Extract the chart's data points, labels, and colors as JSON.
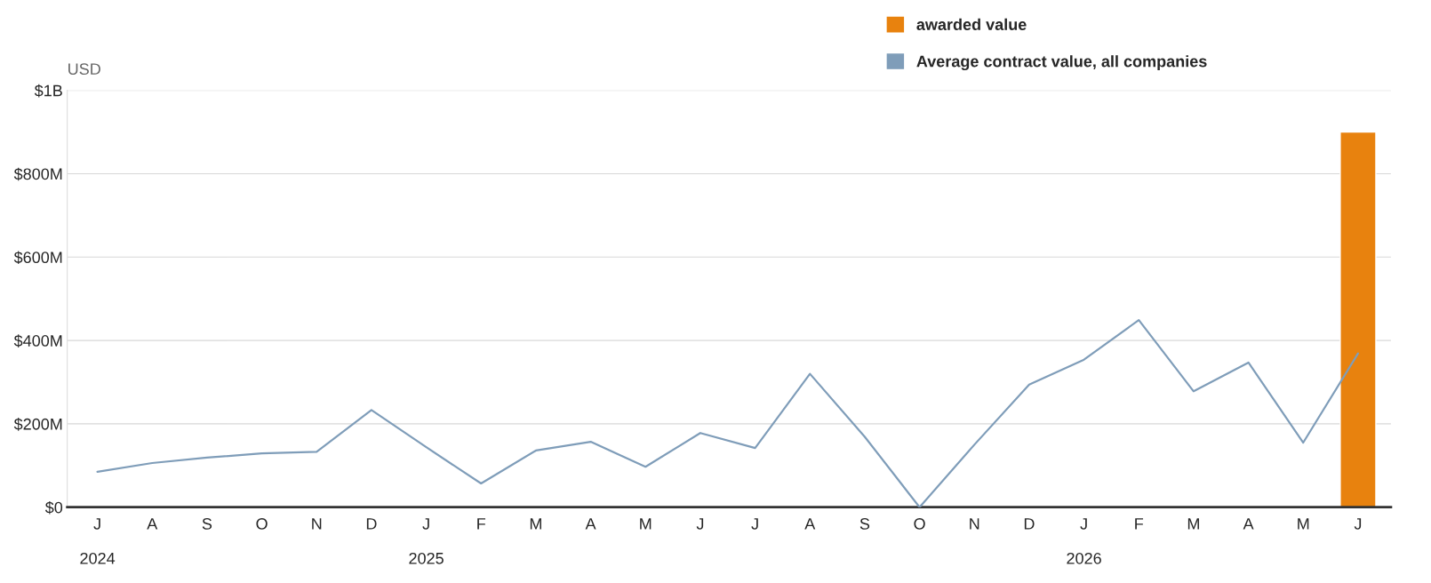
{
  "chart_data": {
    "type": "line",
    "ylabel": "USD",
    "categories": [
      "J\n\n2024",
      "A",
      "S",
      "O",
      "N",
      "D",
      "J\n\n2025",
      "F",
      "M",
      "A",
      "M",
      "J",
      "J",
      "A",
      "S",
      "O",
      "N",
      "D",
      "J\n\n2026",
      "F",
      "M",
      "A",
      "M",
      "J"
    ],
    "series": [
      {
        "type": "bar",
        "name": "awarded value",
        "color": "#e8820e",
        "values": [
          null,
          null,
          null,
          null,
          null,
          null,
          null,
          null,
          null,
          null,
          null,
          null,
          null,
          null,
          null,
          null,
          null,
          null,
          null,
          null,
          null,
          null,
          null,
          900000000
        ]
      },
      {
        "name": "Average contract value, all companies",
        "color": "#7f9db9",
        "values": [
          85000000,
          106000000,
          119000000,
          129000000,
          133000000,
          233000000,
          144000000,
          57000000,
          136000000,
          157000000,
          97000000,
          178000000,
          142000000,
          320000000,
          169000000,
          0,
          150000000,
          294000000,
          354000000,
          449000000,
          278000000,
          347000000,
          155000000,
          369000000
        ]
      }
    ],
    "ylim": [
      0,
      1000000000
    ],
    "yticks": [
      {
        "value": 0,
        "label": "$0"
      },
      {
        "value": 200000000,
        "label": "$200M"
      },
      {
        "value": 400000000,
        "label": "$400M"
      },
      {
        "value": 600000000,
        "label": "$600M"
      },
      {
        "value": 800000000,
        "label": "$800M"
      },
      {
        "value": 1000000000,
        "label": "$1B"
      }
    ],
    "grid": "y",
    "legend": "top right",
    "marker": "none",
    "line_style": "solid"
  }
}
